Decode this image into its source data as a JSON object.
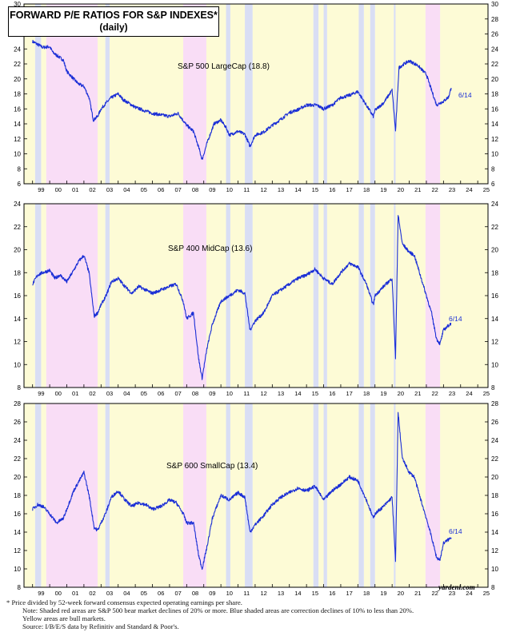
{
  "title": {
    "line1": "FORWARD P/E RATIOS FOR S&P INDEXES*",
    "line2": "(daily)"
  },
  "colors": {
    "bull": "#fdfbd6",
    "bear": "#f9ddf6",
    "correction": "#d9def4",
    "line": "#1b2fd6",
    "axis": "#000000"
  },
  "chart_data": [
    {
      "type": "line",
      "title": "S&P 500 LargeCap (18.8)",
      "end_label": "6/14",
      "ylim": [
        6,
        30
      ],
      "yticks": [
        6,
        8,
        10,
        12,
        14,
        16,
        18,
        20,
        22,
        24,
        26,
        28,
        30
      ],
      "xlim": [
        1998.5,
        2025.6
      ],
      "xtick_labels": [
        "99",
        "00",
        "01",
        "02",
        "03",
        "04",
        "05",
        "06",
        "07",
        "08",
        "09",
        "10",
        "11",
        "12",
        "13",
        "14",
        "15",
        "16",
        "17",
        "18",
        "19",
        "20",
        "21",
        "22",
        "23",
        "24",
        "25"
      ],
      "x": [
        1999.0,
        1999.3,
        1999.6,
        2000.0,
        2000.2,
        2000.5,
        2000.8,
        2001.0,
        2001.4,
        2001.7,
        2002.0,
        2002.3,
        2002.55,
        2002.8,
        2003.0,
        2003.3,
        2003.6,
        2004.0,
        2004.3,
        2004.6,
        2005.0,
        2005.5,
        2006.0,
        2006.5,
        2007.0,
        2007.5,
        2008.0,
        2008.4,
        2008.75,
        2008.9,
        2009.2,
        2009.6,
        2010.0,
        2010.3,
        2010.5,
        2011.0,
        2011.4,
        2011.7,
        2012.0,
        2012.5,
        2013.0,
        2013.5,
        2014.0,
        2014.5,
        2015.0,
        2015.6,
        2016.0,
        2016.5,
        2017.0,
        2017.5,
        2018.0,
        2018.3,
        2018.9,
        2019.0,
        2019.5,
        2020.0,
        2020.2,
        2020.4,
        2020.7,
        2021.0,
        2021.5,
        2022.0,
        2022.3,
        2022.6,
        2022.8,
        2023.0,
        2023.3,
        2023.45
      ],
      "values": [
        25.0,
        24.6,
        24.2,
        24.3,
        23.5,
        23.0,
        22.5,
        21.0,
        20.0,
        19.3,
        19.0,
        17.5,
        14.5,
        15.0,
        16.0,
        16.8,
        17.5,
        18.0,
        17.2,
        16.8,
        16.2,
        15.8,
        15.4,
        15.2,
        15.0,
        15.4,
        13.8,
        13.0,
        10.5,
        9.2,
        11.5,
        14.0,
        14.5,
        13.5,
        12.5,
        13.0,
        12.6,
        11.0,
        12.5,
        12.9,
        13.8,
        14.6,
        15.5,
        15.9,
        16.5,
        16.5,
        16.0,
        16.5,
        17.5,
        17.8,
        18.3,
        17.2,
        15.0,
        15.8,
        16.8,
        18.5,
        13.0,
        21.5,
        22.0,
        22.4,
        21.8,
        20.6,
        18.5,
        16.5,
        16.8,
        17.0,
        17.6,
        18.8
      ]
    },
    {
      "type": "line",
      "title": "S&P 400 MidCap (13.6)",
      "end_label": "6/14",
      "ylim": [
        8,
        24
      ],
      "yticks": [
        8,
        10,
        12,
        14,
        16,
        18,
        20,
        22,
        24
      ],
      "xlim": [
        1998.5,
        2025.6
      ],
      "xtick_labels": [
        "99",
        "00",
        "01",
        "02",
        "03",
        "04",
        "05",
        "06",
        "07",
        "08",
        "09",
        "10",
        "11",
        "12",
        "13",
        "14",
        "15",
        "16",
        "17",
        "18",
        "19",
        "20",
        "21",
        "22",
        "23",
        "24",
        "25"
      ],
      "x": [
        1999.0,
        1999.3,
        1999.6,
        2000.0,
        2000.3,
        2000.6,
        2001.0,
        2001.4,
        2001.7,
        2002.0,
        2002.3,
        2002.6,
        2002.8,
        2003.0,
        2003.3,
        2003.6,
        2004.0,
        2004.4,
        2004.8,
        2005.2,
        2005.6,
        2006.0,
        2006.5,
        2007.0,
        2007.4,
        2007.8,
        2008.0,
        2008.4,
        2008.7,
        2008.9,
        2009.2,
        2009.5,
        2010.0,
        2010.5,
        2011.0,
        2011.4,
        2011.7,
        2012.0,
        2012.5,
        2013.0,
        2013.5,
        2014.0,
        2014.5,
        2015.0,
        2015.5,
        2016.0,
        2016.5,
        2017.0,
        2017.5,
        2018.0,
        2018.5,
        2018.9,
        2019.0,
        2019.5,
        2020.0,
        2020.2,
        2020.35,
        2020.6,
        2021.0,
        2021.3,
        2021.6,
        2022.0,
        2022.3,
        2022.6,
        2022.8,
        2023.0,
        2023.45
      ],
      "values": [
        17.0,
        17.8,
        18.0,
        18.2,
        17.5,
        17.8,
        17.2,
        18.2,
        19.0,
        19.5,
        18.0,
        14.2,
        14.5,
        15.2,
        16.0,
        17.2,
        17.5,
        16.8,
        16.2,
        16.8,
        16.5,
        16.2,
        16.5,
        16.8,
        17.0,
        15.5,
        14.0,
        14.5,
        10.5,
        8.8,
        11.5,
        13.5,
        15.5,
        16.0,
        16.5,
        16.2,
        13.0,
        13.8,
        14.5,
        16.0,
        16.5,
        17.0,
        17.5,
        17.8,
        18.3,
        17.5,
        17.0,
        18.0,
        18.8,
        18.5,
        17.0,
        15.2,
        16.0,
        16.8,
        17.5,
        10.5,
        23.0,
        20.5,
        19.8,
        19.5,
        18.0,
        16.0,
        14.5,
        12.2,
        11.8,
        13.0,
        13.6
      ]
    },
    {
      "type": "line",
      "title": "S&P 600 SmallCap (13.4)",
      "end_label": "6/14",
      "ylim": [
        8,
        28
      ],
      "yticks": [
        8,
        10,
        12,
        14,
        16,
        18,
        20,
        22,
        24,
        26,
        28
      ],
      "xlim": [
        1998.5,
        2025.6
      ],
      "xtick_labels": [
        "99",
        "00",
        "01",
        "02",
        "03",
        "04",
        "05",
        "06",
        "07",
        "08",
        "09",
        "10",
        "11",
        "12",
        "13",
        "14",
        "15",
        "16",
        "17",
        "18",
        "19",
        "20",
        "21",
        "22",
        "23",
        "24",
        "25"
      ],
      "x": [
        1999.0,
        1999.3,
        1999.6,
        2000.0,
        2000.4,
        2000.8,
        2001.0,
        2001.4,
        2001.7,
        2002.0,
        2002.3,
        2002.6,
        2002.8,
        2003.0,
        2003.3,
        2003.6,
        2004.0,
        2004.4,
        2004.8,
        2005.2,
        2005.6,
        2006.0,
        2006.5,
        2007.0,
        2007.4,
        2007.8,
        2008.0,
        2008.4,
        2008.7,
        2008.9,
        2009.2,
        2009.5,
        2010.0,
        2010.5,
        2011.0,
        2011.4,
        2011.7,
        2012.0,
        2012.5,
        2013.0,
        2013.5,
        2014.0,
        2014.5,
        2015.0,
        2015.5,
        2016.0,
        2016.5,
        2017.0,
        2017.5,
        2018.0,
        2018.5,
        2018.9,
        2019.0,
        2019.5,
        2020.0,
        2020.2,
        2020.35,
        2020.6,
        2021.0,
        2021.3,
        2021.6,
        2022.0,
        2022.3,
        2022.6,
        2022.8,
        2023.0,
        2023.45
      ],
      "values": [
        16.5,
        17.0,
        16.8,
        16.0,
        15.0,
        15.5,
        16.5,
        18.5,
        19.5,
        20.5,
        18.0,
        14.5,
        14.2,
        15.0,
        16.2,
        17.8,
        18.5,
        17.5,
        16.8,
        17.2,
        17.0,
        16.5,
        16.8,
        17.5,
        17.2,
        16.0,
        15.0,
        15.0,
        11.5,
        10.0,
        12.5,
        15.5,
        18.0,
        17.5,
        18.3,
        17.8,
        14.0,
        14.8,
        15.8,
        17.0,
        17.8,
        18.3,
        18.8,
        18.5,
        19.0,
        17.5,
        18.5,
        19.2,
        20.0,
        19.6,
        17.5,
        15.5,
        16.0,
        16.8,
        17.8,
        10.8,
        27.0,
        22.0,
        20.5,
        20.0,
        18.0,
        15.5,
        13.5,
        11.2,
        11.0,
        12.8,
        13.4
      ]
    }
  ],
  "shading": {
    "bull": [
      [
        1998.5,
        1999.15
      ],
      [
        1999.5,
        1999.8
      ],
      [
        2002.8,
        2003.25
      ],
      [
        2003.5,
        2007.8
      ],
      [
        2009.15,
        2010.3
      ],
      [
        2010.55,
        2011.4
      ],
      [
        2011.85,
        2015.4
      ],
      [
        2015.7,
        2016.0
      ],
      [
        2016.2,
        2018.05
      ],
      [
        2018.35,
        2018.72
      ],
      [
        2019.0,
        2020.1
      ],
      [
        2020.2,
        2021.95
      ],
      [
        2022.8,
        2025.6
      ]
    ],
    "bear": [
      [
        1999.8,
        2002.8
      ],
      [
        2007.8,
        2009.15
      ],
      [
        2021.95,
        2022.8
      ]
    ],
    "correction": [
      [
        1999.15,
        1999.5
      ],
      [
        2003.25,
        2003.5
      ],
      [
        2010.3,
        2010.55
      ],
      [
        2011.4,
        2011.85
      ],
      [
        2015.4,
        2015.7
      ],
      [
        2016.0,
        2016.2
      ],
      [
        2018.05,
        2018.35
      ],
      [
        2018.72,
        2019.0
      ],
      [
        2020.1,
        2020.2
      ]
    ]
  },
  "credit": "yardeni.com",
  "footnotes": [
    "* Price divided by 52-week forward consensus expected operating earnings per share.",
    "Note: Shaded red areas are S&P 500 bear market declines of 20% or more.  Blue shaded areas are correction declines of 10% to less than 20%.",
    "Yellow areas are bull markets.",
    "Source: I/B/E/S data by Refinitiv and Standard & Poor's."
  ]
}
